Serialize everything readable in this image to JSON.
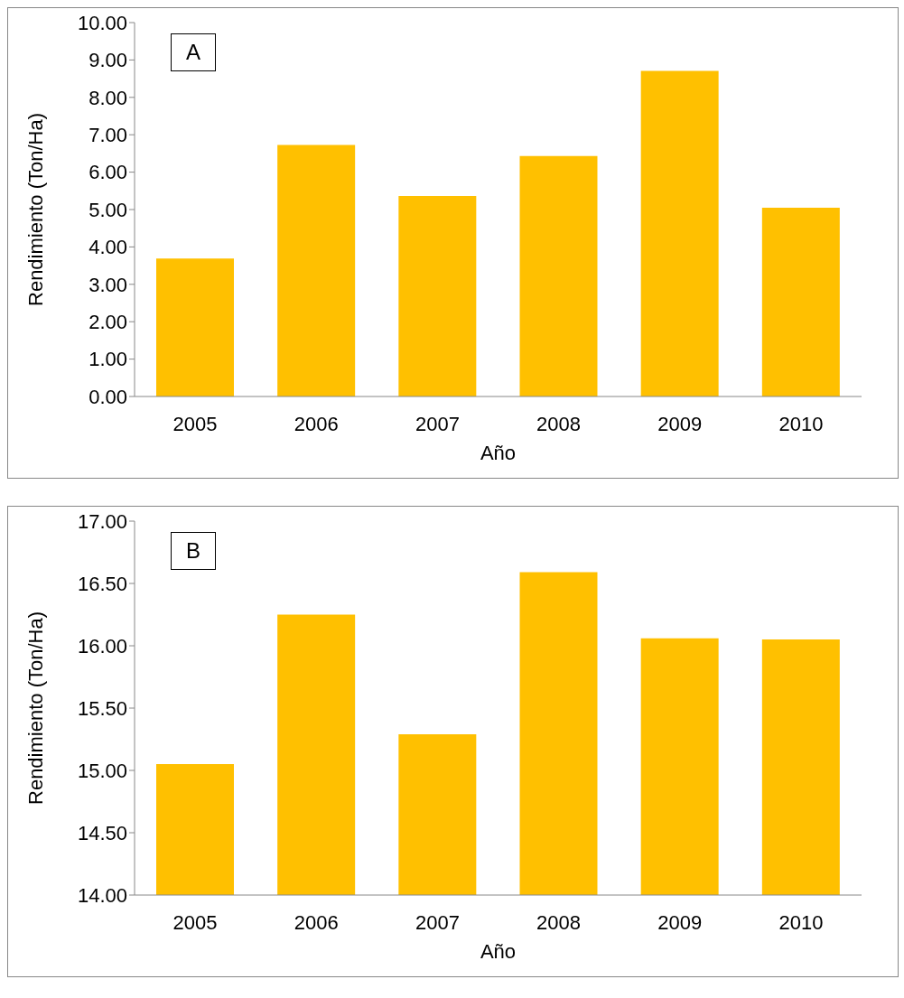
{
  "chart_data": [
    {
      "type": "bar",
      "annotations": [
        "A"
      ],
      "xlabel": "Año",
      "ylabel": "Rendimiento (Ton/Ha)",
      "categories": [
        "2005",
        "2006",
        "2007",
        "2008",
        "2009",
        "2010"
      ],
      "values": [
        3.69,
        6.73,
        5.36,
        6.43,
        8.71,
        5.05
      ],
      "color": "#ffc000",
      "ylim": [
        0,
        10
      ],
      "yticks": [
        {
          "value": 0,
          "label": "0.00"
        },
        {
          "value": 1,
          "label": "1.00"
        },
        {
          "value": 2,
          "label": "2.00"
        },
        {
          "value": 3,
          "label": "3.00"
        },
        {
          "value": 4,
          "label": "4.00"
        },
        {
          "value": 5,
          "label": "5.00"
        },
        {
          "value": 6,
          "label": "6.00"
        },
        {
          "value": 7,
          "label": "7.00"
        },
        {
          "value": 8,
          "label": "8.00"
        },
        {
          "value": 9,
          "label": "9.00"
        },
        {
          "value": 10,
          "label": "10.00"
        }
      ],
      "grid": false
    },
    {
      "type": "bar",
      "annotations": [
        "B"
      ],
      "xlabel": "Año",
      "ylabel": "Rendimiento (Ton/Ha)",
      "categories": [
        "2005",
        "2006",
        "2007",
        "2008",
        "2009",
        "2010"
      ],
      "values": [
        15.05,
        16.25,
        15.29,
        16.59,
        16.06,
        16.05
      ],
      "color": "#ffc000",
      "ylim": [
        14,
        17
      ],
      "yticks": [
        {
          "value": 14,
          "label": "14.00"
        },
        {
          "value": 14.5,
          "label": "14.50"
        },
        {
          "value": 15,
          "label": "15.00"
        },
        {
          "value": 15.5,
          "label": "15.50"
        },
        {
          "value": 16,
          "label": "16.00"
        },
        {
          "value": 16.5,
          "label": "16.50"
        },
        {
          "value": 17,
          "label": "17.00"
        }
      ],
      "grid": false
    }
  ]
}
